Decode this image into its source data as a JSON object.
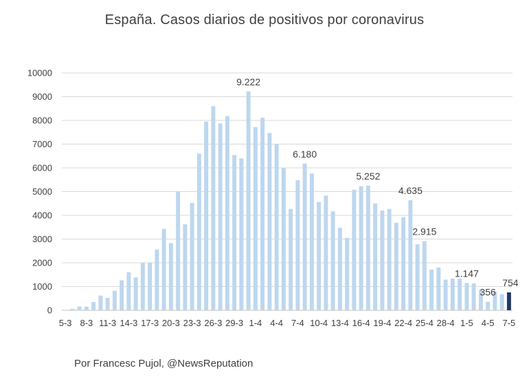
{
  "chart_data": {
    "type": "bar",
    "title": "España. Casos diarios de positivos por coronavirus",
    "xlabel": "",
    "ylabel": "",
    "ylim": [
      0,
      10000
    ],
    "yticks": [
      "0",
      "1000",
      "2000",
      "3000",
      "4000",
      "5000",
      "6000",
      "7000",
      "8000",
      "9000",
      "10000"
    ],
    "grid": true,
    "legend": "none",
    "colors": {
      "bar": "#BDD7EE",
      "highlight": "#1F3864",
      "grid": "#D9D9D9",
      "text": "#404040"
    },
    "x_tick_labels": [
      "5-3",
      "8-3",
      "11-3",
      "14-3",
      "17-3",
      "20-3",
      "23-3",
      "26-3",
      "29-3",
      "1-4",
      "4-4",
      "7-4",
      "10-4",
      "13-4",
      "16-4",
      "19-4",
      "22-4",
      "25-4",
      "28-4",
      "1-5",
      "4-5",
      "7-5"
    ],
    "values": [
      10,
      60,
      160,
      150,
      350,
      620,
      520,
      820,
      1260,
      1600,
      1380,
      2000,
      2000,
      2560,
      3430,
      2830,
      5000,
      3620,
      4520,
      6600,
      7950,
      8600,
      7870,
      8180,
      6540,
      6400,
      9222,
      7720,
      8110,
      7470,
      7000,
      6000,
      4270,
      5480,
      6180,
      5760,
      4560,
      4830,
      4170,
      3480,
      3050,
      5080,
      5230,
      5252,
      4500,
      4200,
      4270,
      3680,
      3910,
      4635,
      2780,
      2915,
      1710,
      1800,
      1290,
      1340,
      1330,
      1147,
      1130,
      860,
      356,
      790,
      680,
      754
    ],
    "highlight_index": 63,
    "data_labels": [
      {
        "index": 26,
        "text": "9.222"
      },
      {
        "index": 34,
        "text": "6.180"
      },
      {
        "index": 43,
        "text": "5.252"
      },
      {
        "index": 49,
        "text": "4.635"
      },
      {
        "index": 51,
        "text": "2.915"
      },
      {
        "index": 57,
        "text": "1.147"
      },
      {
        "index": 60,
        "text": "356"
      },
      {
        "index": 63,
        "text": "754"
      }
    ]
  },
  "footer": "Por Francesc Pujol, @NewsReputation"
}
